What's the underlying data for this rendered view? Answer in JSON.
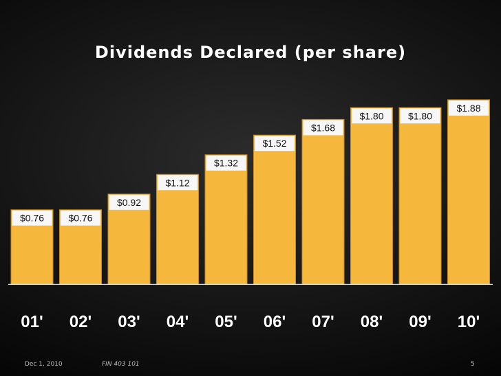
{
  "chart_data": {
    "type": "bar",
    "title": "Dividends Declared (per share)",
    "categories": [
      "01'",
      "02'",
      "03'",
      "04'",
      "05'",
      "06'",
      "07'",
      "08'",
      "09'",
      "10'"
    ],
    "values": [
      0.76,
      0.76,
      0.92,
      1.12,
      1.32,
      1.52,
      1.68,
      1.8,
      1.8,
      1.88
    ],
    "data_labels": [
      "$0.76",
      "$0.76",
      "$0.92",
      "$1.12",
      "$1.32",
      "$1.52",
      "$1.68",
      "$1.80",
      "$1.80",
      "$1.88"
    ],
    "xlabel": "",
    "ylabel": "",
    "ylim": [
      0,
      1.9
    ],
    "grid": false,
    "legend": "none",
    "colors": {
      "bar": "#f5b83c",
      "bar_edge": "#c98a1c",
      "label_bg": "#f7f7f7",
      "axis": "#ffffff",
      "tick_text": "#ffffff"
    }
  },
  "footer": {
    "date": "Dec 1, 2010",
    "course": "FIN 403 101",
    "page": "5"
  }
}
